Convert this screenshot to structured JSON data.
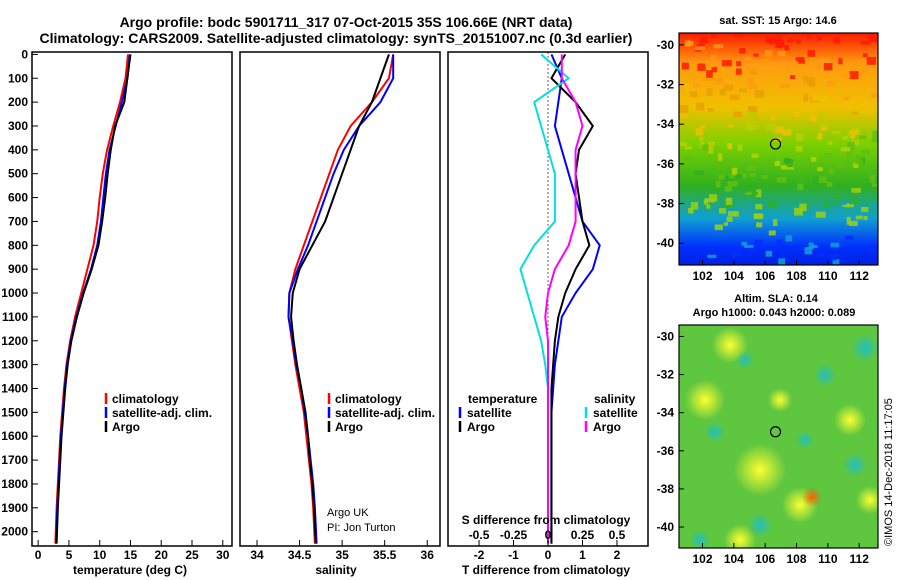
{
  "title_line1": "Argo profile: bodc 5901711_317 07-Oct-2015 35S 106.66E (NRT data)",
  "title_line2": "Climatology: CARS2009. Satellite-adjusted climatology: synTS_20151007.nc (0.3d earlier)",
  "credit_text": "©IMOS 14-Dec-2018 11:17:05",
  "map_top_title": "sat. SST: 15 Argo: 14.6",
  "map_bottom_title1": "Altim. SLA: 0.14",
  "map_bottom_title2": "Argo h1000: 0.043 h2000: 0.089",
  "colors": {
    "climatology": "#ff0000",
    "satellite": "#0000ff",
    "argo": "#000000",
    "sat_salinity": "#00e0e0",
    "argo_salinity": "#ff00ff"
  },
  "chart_data": [
    {
      "type": "line",
      "xlabel": "temperature (deg C)",
      "ylabel": "",
      "xlim": [
        -1,
        31.5
      ],
      "ylim": [
        2060,
        -10
      ],
      "xticks": [
        "0",
        "5",
        "10",
        "15",
        "20",
        "25",
        "30"
      ],
      "yticks": [
        "0",
        "100",
        "200",
        "300",
        "400",
        "500",
        "600",
        "700",
        "800",
        "900",
        "1000",
        "1100",
        "1200",
        "1300",
        "1400",
        "1500",
        "1600",
        "1700",
        "1800",
        "1900",
        "2000"
      ],
      "legend": [
        "climatology",
        "satellite-adj. clim.",
        "Argo"
      ],
      "series": [
        {
          "name": "climatology",
          "x": [
            14.6,
            14.2,
            13.3,
            12.2,
            11.2,
            10.5,
            10,
            9.6,
            9,
            8,
            7,
            6,
            5.2,
            4.6,
            4.2,
            3.9,
            3.6,
            3.4,
            3.2,
            3,
            2.8
          ],
          "y": [
            0,
            100,
            200,
            300,
            400,
            500,
            600,
            700,
            800,
            900,
            1000,
            1100,
            1200,
            1300,
            1400,
            1500,
            1600,
            1700,
            1800,
            1900,
            2050
          ]
        },
        {
          "name": "satellite-adj. clim.",
          "x": [
            14.9,
            14.5,
            13.6,
            12.6,
            11.6,
            11,
            10.6,
            10.2,
            9.6,
            8.6,
            7.3,
            6.2,
            5.3,
            4.7,
            4.3,
            4,
            3.7,
            3.5,
            3.3,
            3.1,
            2.9
          ],
          "y": [
            0,
            100,
            200,
            300,
            400,
            500,
            600,
            700,
            800,
            900,
            1000,
            1100,
            1200,
            1300,
            1400,
            1500,
            1600,
            1700,
            1800,
            1900,
            2050
          ]
        },
        {
          "name": "Argo",
          "x": [
            15,
            14.5,
            14,
            12.5,
            11.8,
            11.3,
            10.9,
            10.4,
            9.8,
            8.7,
            7.4,
            6.3,
            5.4,
            4.8,
            4.4,
            4.1,
            3.8,
            3.6,
            3.4,
            3.2,
            3
          ],
          "y": [
            0,
            100,
            200,
            300,
            400,
            500,
            600,
            700,
            800,
            900,
            1000,
            1100,
            1200,
            1300,
            1400,
            1500,
            1600,
            1700,
            1800,
            1900,
            2050
          ]
        }
      ]
    },
    {
      "type": "line",
      "xlabel": "salinity",
      "ylabel": "",
      "xlim": [
        33.8,
        36.15
      ],
      "ylim": [
        2060,
        -10
      ],
      "xticks": [
        "34",
        "34.5",
        "35",
        "35.5",
        "36"
      ],
      "legend": [
        "climatology",
        "satellite-adj. clim.",
        "Argo"
      ],
      "annotation": [
        "Argo UK",
        "PI: Jon Turton"
      ],
      "series": [
        {
          "name": "climatology",
          "x": [
            35.6,
            35.55,
            35.35,
            35.1,
            34.95,
            34.85,
            34.75,
            34.65,
            34.55,
            34.45,
            34.38,
            34.37,
            34.41,
            34.45,
            34.5,
            34.55,
            34.58,
            34.61,
            34.64,
            34.66,
            34.68
          ],
          "y": [
            0,
            100,
            200,
            300,
            400,
            500,
            600,
            700,
            800,
            900,
            1000,
            1100,
            1200,
            1300,
            1400,
            1500,
            1600,
            1700,
            1800,
            1900,
            2050
          ]
        },
        {
          "name": "satellite-adj. clim.",
          "x": [
            35.6,
            35.6,
            35.45,
            35.2,
            35.02,
            34.9,
            34.8,
            34.7,
            34.6,
            34.48,
            34.38,
            34.37,
            34.42,
            34.46,
            34.52,
            34.56,
            34.6,
            34.63,
            34.66,
            34.68,
            34.7
          ],
          "y": [
            0,
            100,
            200,
            300,
            400,
            500,
            600,
            700,
            800,
            900,
            1000,
            1100,
            1200,
            1300,
            1400,
            1500,
            1600,
            1700,
            1800,
            1900,
            2050
          ]
        },
        {
          "name": "Argo",
          "x": [
            35.55,
            35.45,
            35.35,
            35.2,
            35.1,
            35,
            34.9,
            34.8,
            34.65,
            34.5,
            34.42,
            34.4,
            34.43,
            34.47,
            34.52,
            34.57,
            34.6,
            34.62,
            34.65,
            34.67,
            34.69
          ],
          "y": [
            0,
            100,
            200,
            300,
            400,
            500,
            600,
            700,
            800,
            900,
            1000,
            1100,
            1200,
            1300,
            1400,
            1500,
            1600,
            1700,
            1800,
            1900,
            2050
          ]
        }
      ]
    },
    {
      "type": "line",
      "xlabel": "T difference from climatology",
      "ylabel": "",
      "xlim": [
        -2.9,
        2.9
      ],
      "ylim": [
        2060,
        -10
      ],
      "xticks": [
        "-2",
        "-1",
        "0",
        "1",
        "2"
      ],
      "xlabel_top": "S difference from climatology",
      "xticks_top": [
        "-0.5",
        "-0.25",
        "0",
        "0.25",
        "0.5"
      ],
      "legend": [
        "temperature",
        "satellite",
        "Argo",
        "salinity",
        "satellite",
        "Argo"
      ],
      "series": [
        {
          "name": "satellite",
          "x": [
            0.1,
            0.4,
            0.3,
            0.2,
            0.4,
            0.6,
            0.8,
            1.0,
            1.5,
            1.3,
            0.8,
            0.4,
            0.3,
            0.2,
            0.15,
            0.1,
            0.1,
            0.1,
            0.1,
            0.1,
            0.1
          ],
          "y": [
            0,
            100,
            200,
            300,
            400,
            500,
            600,
            700,
            800,
            900,
            1000,
            1100,
            1200,
            1300,
            1400,
            1500,
            1600,
            1700,
            1800,
            1900,
            2050
          ]
        },
        {
          "name": "Argo",
          "x": [
            0.5,
            0.1,
            0.8,
            1.3,
            0.9,
            0.8,
            0.9,
            1.0,
            1.2,
            0.8,
            0.5,
            0.3,
            0.2,
            0.15,
            0.1,
            0.1,
            0.1,
            0.1,
            0.1,
            0.1,
            0.1
          ],
          "y": [
            0,
            100,
            200,
            300,
            400,
            500,
            600,
            700,
            800,
            900,
            1000,
            1100,
            1200,
            1300,
            1400,
            1500,
            1600,
            1700,
            1800,
            1900,
            2050
          ]
        },
        {
          "name": "satellite",
          "x": [
            -0.05,
            0.15,
            -0.1,
            -0.05,
            0,
            0.05,
            0.05,
            0.05,
            -0.1,
            -0.2,
            -0.15,
            -0.1,
            -0.05,
            -0.02,
            0,
            0,
            0,
            0,
            0,
            0,
            0
          ],
          "y": [
            0,
            100,
            200,
            300,
            400,
            500,
            600,
            700,
            800,
            900,
            1000,
            1100,
            1200,
            1300,
            1400,
            1500,
            1600,
            1700,
            1800,
            1900,
            2050
          ]
        },
        {
          "name": "Argo",
          "x": [
            0.1,
            0.1,
            0.2,
            0.25,
            0.2,
            0.2,
            0.2,
            0.2,
            0.15,
            0.05,
            0,
            -0.02,
            0,
            0,
            0,
            0,
            0,
            0,
            0,
            0,
            0
          ],
          "y": [
            0,
            100,
            200,
            300,
            400,
            500,
            600,
            700,
            800,
            900,
            1000,
            1100,
            1200,
            1300,
            1400,
            1500,
            1600,
            1700,
            1800,
            1900,
            2050
          ]
        }
      ]
    }
  ],
  "map_top": {
    "yticks": [
      "-30",
      "-32",
      "-34",
      "-36",
      "-38",
      "-40"
    ],
    "xticks": [
      "102",
      "104",
      "106",
      "108",
      "110",
      "112"
    ],
    "marker": [
      106.66,
      -35
    ]
  },
  "map_bottom": {
    "yticks": [
      "-30",
      "-32",
      "-34",
      "-36",
      "-38",
      "-40"
    ],
    "xticks": [
      "102",
      "104",
      "106",
      "108",
      "110",
      "112"
    ],
    "marker": [
      106.66,
      -35
    ]
  }
}
